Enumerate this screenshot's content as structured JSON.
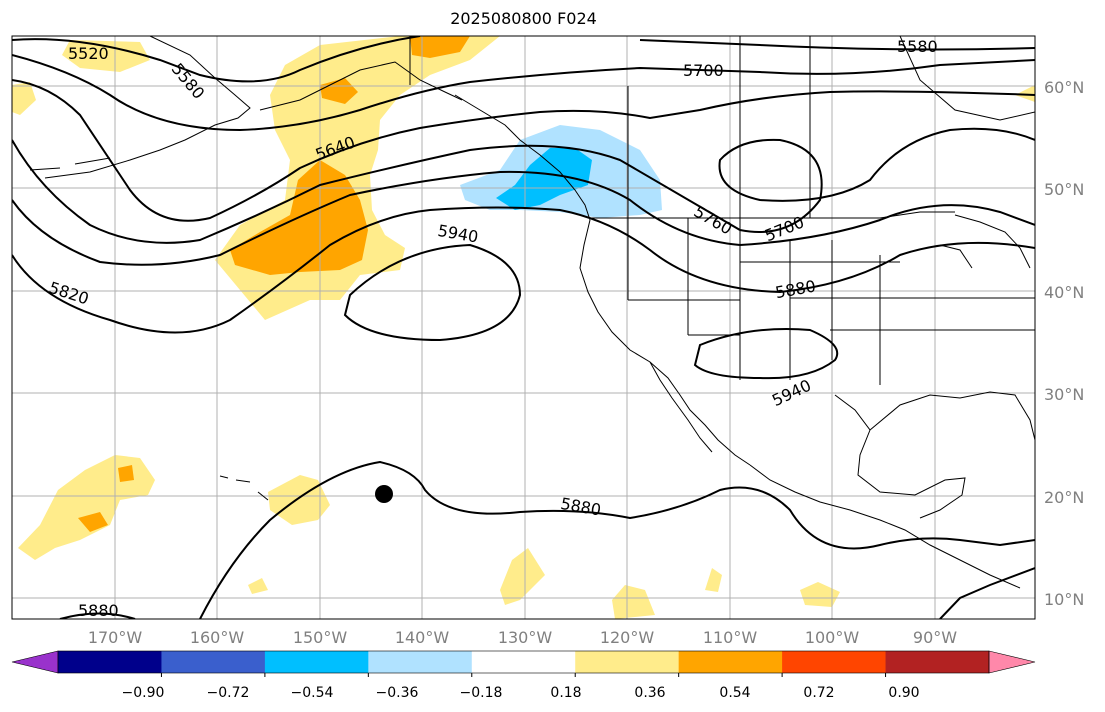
{
  "title": "2025080800 F024",
  "map": {
    "lat_labels": [
      "60°N",
      "50°N",
      "40°N",
      "30°N",
      "20°N",
      "10°N"
    ],
    "lon_labels": [
      "170°W",
      "160°W",
      "150°W",
      "140°W",
      "130°W",
      "120°W",
      "110°W",
      "100°W",
      "90°W"
    ],
    "contour_labels": [
      "5520",
      "5580",
      "5580",
      "5640",
      "5700",
      "5700",
      "5760",
      "5820",
      "5880",
      "5880",
      "5880",
      "5940",
      "5940"
    ],
    "contour_color": "#000000",
    "land_outline_color": "#000000",
    "grid_color": "#b0b0b0",
    "storm_marker": "filled-circle"
  },
  "colorbar": {
    "colors": [
      "#9932cc",
      "#00008b",
      "#3a5fcd",
      "#00bfff",
      "#b0e2ff",
      "#ffffff",
      "#ffec8b",
      "#ffa500",
      "#ff4500",
      "#b22222",
      "#ff88aa"
    ],
    "tick_labels": [
      "−0.90",
      "−0.72",
      "−0.54",
      "−0.36",
      "−0.18",
      "0.18",
      "0.36",
      "0.54",
      "0.72",
      "0.90"
    ]
  }
}
